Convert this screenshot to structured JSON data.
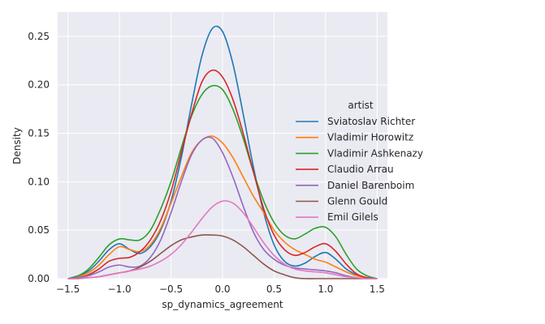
{
  "chart_data": {
    "type": "line",
    "title": "",
    "xlabel": "sp_dynamics_agreement",
    "ylabel": "Density",
    "xlim": [
      -1.6,
      1.6
    ],
    "ylim": [
      0,
      0.275
    ],
    "xticks": [
      -1.5,
      -1.0,
      -0.5,
      0.0,
      0.5,
      1.0,
      1.5
    ],
    "xtick_labels": [
      "−1.5",
      "−1.0",
      "−0.5",
      "0.0",
      "0.5",
      "1.0",
      "1.5"
    ],
    "yticks": [
      0.0,
      0.05,
      0.1,
      0.15,
      0.2,
      0.25
    ],
    "ytick_labels": [
      "0.00",
      "0.05",
      "0.10",
      "0.15",
      "0.20",
      "0.25"
    ],
    "grid": true,
    "background": "#eaeaf2",
    "legend": {
      "title": "artist",
      "placement": "right"
    },
    "x": [
      -1.5,
      -1.4,
      -1.3,
      -1.2,
      -1.1,
      -1.0,
      -0.9,
      -0.8,
      -0.7,
      -0.6,
      -0.5,
      -0.4,
      -0.3,
      -0.2,
      -0.1,
      0.0,
      0.1,
      0.2,
      0.3,
      0.4,
      0.5,
      0.6,
      0.7,
      0.8,
      0.9,
      1.0,
      1.1,
      1.2,
      1.3,
      1.4,
      1.5
    ],
    "series": [
      {
        "name": "Sviatoslav Richter",
        "color": "#1f77b4",
        "values": [
          0.0,
          0.003,
          0.008,
          0.018,
          0.03,
          0.036,
          0.03,
          0.026,
          0.033,
          0.05,
          0.08,
          0.125,
          0.18,
          0.23,
          0.258,
          0.255,
          0.222,
          0.17,
          0.115,
          0.068,
          0.035,
          0.018,
          0.013,
          0.016,
          0.023,
          0.027,
          0.02,
          0.01,
          0.004,
          0.001,
          0.0
        ]
      },
      {
        "name": "Vladimir Horowitz",
        "color": "#ff7f0e",
        "values": [
          0.0,
          0.002,
          0.006,
          0.014,
          0.025,
          0.033,
          0.03,
          0.028,
          0.035,
          0.052,
          0.078,
          0.105,
          0.13,
          0.143,
          0.147,
          0.14,
          0.125,
          0.105,
          0.085,
          0.068,
          0.05,
          0.038,
          0.03,
          0.025,
          0.02,
          0.017,
          0.012,
          0.007,
          0.003,
          0.001,
          0.0
        ]
      },
      {
        "name": "Vladimir Ashkenazy",
        "color": "#2ca02c",
        "values": [
          0.0,
          0.003,
          0.01,
          0.022,
          0.035,
          0.041,
          0.04,
          0.04,
          0.05,
          0.072,
          0.1,
          0.135,
          0.168,
          0.19,
          0.199,
          0.195,
          0.175,
          0.145,
          0.11,
          0.08,
          0.058,
          0.045,
          0.041,
          0.046,
          0.052,
          0.053,
          0.043,
          0.025,
          0.01,
          0.003,
          0.0
        ]
      },
      {
        "name": "Claudio Arrau",
        "color": "#d62728",
        "values": [
          0.0,
          0.001,
          0.004,
          0.01,
          0.018,
          0.021,
          0.022,
          0.028,
          0.04,
          0.06,
          0.09,
          0.13,
          0.17,
          0.203,
          0.215,
          0.208,
          0.185,
          0.15,
          0.11,
          0.072,
          0.045,
          0.03,
          0.024,
          0.027,
          0.033,
          0.036,
          0.028,
          0.015,
          0.005,
          0.001,
          0.0
        ]
      },
      {
        "name": "Daniel Barenboim",
        "color": "#9467bd",
        "values": [
          0.0,
          0.001,
          0.003,
          0.007,
          0.012,
          0.014,
          0.012,
          0.013,
          0.022,
          0.04,
          0.068,
          0.1,
          0.128,
          0.143,
          0.145,
          0.13,
          0.105,
          0.075,
          0.048,
          0.03,
          0.02,
          0.014,
          0.011,
          0.01,
          0.009,
          0.008,
          0.006,
          0.003,
          0.001,
          0.0,
          0.0
        ]
      },
      {
        "name": "Glenn Gould",
        "color": "#8c564b",
        "values": [
          0.0,
          0.0,
          0.001,
          0.002,
          0.004,
          0.006,
          0.008,
          0.012,
          0.018,
          0.026,
          0.034,
          0.04,
          0.043,
          0.045,
          0.045,
          0.044,
          0.04,
          0.033,
          0.024,
          0.015,
          0.008,
          0.004,
          0.001,
          0.0,
          0.0,
          0.0,
          0.0,
          0.0,
          0.0,
          0.0,
          0.0
        ]
      },
      {
        "name": "Emil Gilels",
        "color": "#e377c2",
        "values": [
          0.0,
          0.0,
          0.001,
          0.002,
          0.004,
          0.006,
          0.008,
          0.01,
          0.013,
          0.018,
          0.025,
          0.035,
          0.048,
          0.062,
          0.074,
          0.08,
          0.078,
          0.068,
          0.053,
          0.037,
          0.024,
          0.015,
          0.01,
          0.008,
          0.007,
          0.006,
          0.004,
          0.002,
          0.001,
          0.0,
          0.0
        ]
      }
    ]
  }
}
